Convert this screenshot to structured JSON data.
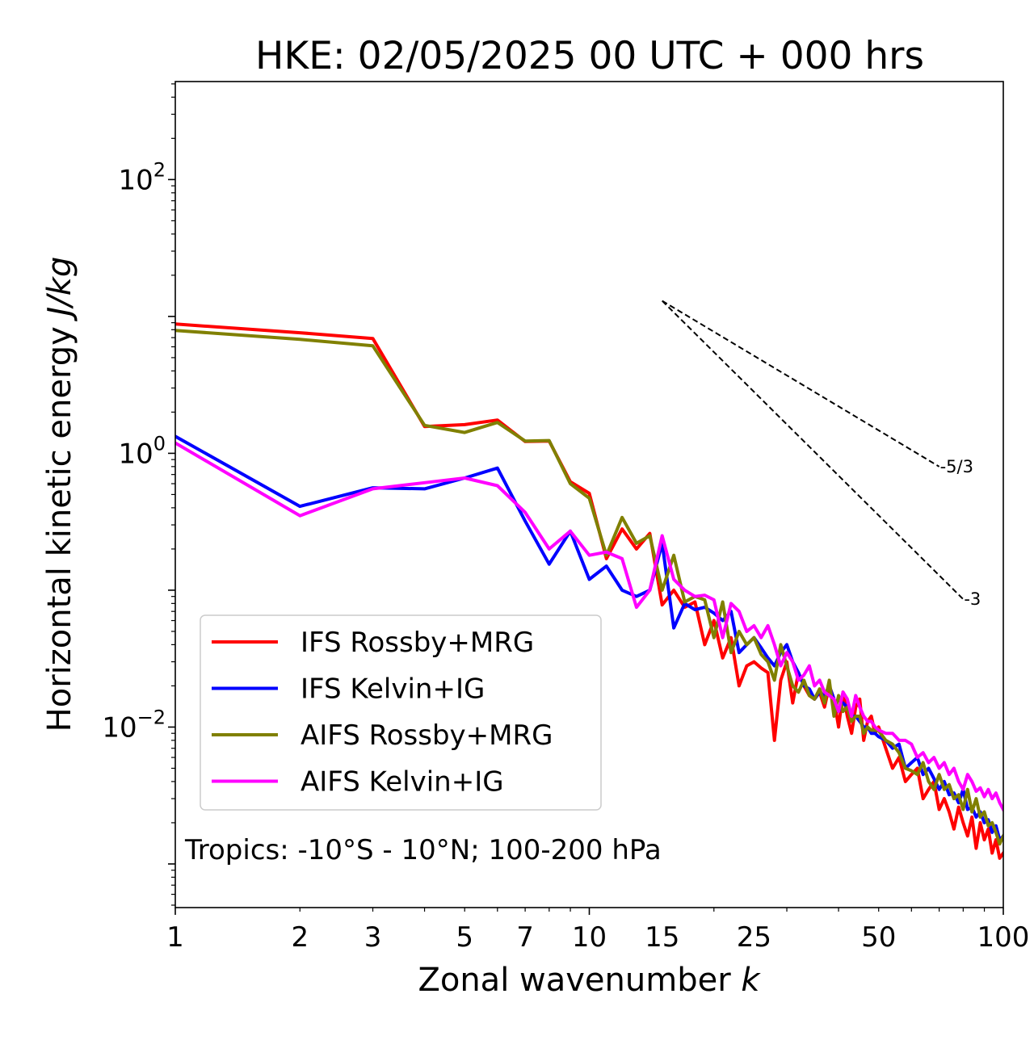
{
  "chart_data": {
    "type": "line",
    "title": "HKE: 02/05/2025 00 UTC + 000 hrs",
    "xlabel": "Zonal wavenumber",
    "xlabel_italic": "k",
    "ylabel": "Horizontal kinetic energy",
    "ylabel_italic": "J/kg",
    "xscale": "log",
    "yscale": "log",
    "xlim": [
      1,
      100
    ],
    "ylim": [
      0.00048,
      520
    ],
    "xticks": [
      1,
      2,
      3,
      5,
      7,
      10,
      15,
      25,
      50,
      100
    ],
    "xtick_labels": [
      "1",
      "2",
      "3",
      "5",
      "7",
      "10",
      "15",
      "25",
      "50",
      "100"
    ],
    "yticks": [
      0.01,
      1,
      100
    ],
    "ytick_labels": [
      "10",
      "10",
      "10"
    ],
    "ytick_exponents": [
      "−2",
      "0",
      "2"
    ],
    "annotation": "Tropics: -10°S - 10°N; 100-200 hPa",
    "legend": {
      "position": "lower-left"
    },
    "reference_lines": [
      {
        "label": "-5/3",
        "slope": -1.6667,
        "x": [
          15,
          70
        ],
        "y": [
          13.0,
          0.8
        ],
        "style": "dashed",
        "color": "#000000"
      },
      {
        "label": "-3",
        "slope": -3,
        "x": [
          15,
          80
        ],
        "y": [
          13.0,
          0.086
        ],
        "style": "dashed",
        "color": "#000000"
      }
    ],
    "series": [
      {
        "name": "IFS Rossby+MRG",
        "color": "#ff0000",
        "x": [
          1,
          2,
          3,
          4,
          5,
          6,
          7,
          8,
          9,
          10,
          11,
          12,
          13,
          14,
          15,
          16,
          17,
          18,
          19,
          20,
          21,
          22,
          23,
          24,
          25,
          26,
          27,
          28,
          29,
          30,
          31,
          32,
          33,
          34,
          35,
          36,
          37,
          38,
          39,
          40,
          41,
          42,
          43,
          44,
          45,
          46,
          47,
          48,
          49,
          50,
          52,
          54,
          56,
          58,
          60,
          62,
          64,
          66,
          68,
          70,
          72,
          74,
          76,
          78,
          80,
          82,
          84,
          86,
          88,
          90,
          92,
          94,
          96,
          98,
          100
        ],
        "y": [
          8.8,
          7.6,
          6.9,
          1.57,
          1.62,
          1.75,
          1.22,
          1.23,
          0.62,
          0.51,
          0.17,
          0.28,
          0.2,
          0.26,
          0.078,
          0.1,
          0.075,
          0.082,
          0.04,
          0.06,
          0.032,
          0.045,
          0.02,
          0.028,
          0.03,
          0.027,
          0.025,
          0.008,
          0.022,
          0.03,
          0.015,
          0.025,
          0.02,
          0.017,
          0.016,
          0.018,
          0.014,
          0.02,
          0.016,
          0.01,
          0.018,
          0.012,
          0.009,
          0.014,
          0.016,
          0.008,
          0.011,
          0.012,
          0.009,
          0.01,
          0.007,
          0.005,
          0.006,
          0.004,
          0.0045,
          0.005,
          0.003,
          0.0035,
          0.004,
          0.0025,
          0.003,
          0.0024,
          0.0018,
          0.0026,
          0.002,
          0.0016,
          0.0022,
          0.0013,
          0.002,
          0.0015,
          0.0018,
          0.0012,
          0.0015,
          0.0011,
          0.0012
        ]
      },
      {
        "name": "IFS Kelvin+IG",
        "color": "#0000ff",
        "x": [
          1,
          2,
          3,
          4,
          5,
          6,
          7,
          8,
          9,
          10,
          11,
          12,
          13,
          14,
          15,
          16,
          17,
          18,
          19,
          20,
          21,
          22,
          23,
          24,
          25,
          26,
          27,
          28,
          29,
          30,
          31,
          32,
          33,
          34,
          35,
          36,
          37,
          38,
          39,
          40,
          41,
          42,
          43,
          44,
          45,
          46,
          47,
          48,
          49,
          50,
          52,
          54,
          56,
          58,
          60,
          62,
          64,
          66,
          68,
          70,
          72,
          74,
          76,
          78,
          80,
          82,
          84,
          86,
          88,
          90,
          92,
          94,
          96,
          98,
          100
        ],
        "y": [
          1.33,
          0.41,
          0.56,
          0.55,
          0.66,
          0.78,
          0.32,
          0.155,
          0.27,
          0.12,
          0.15,
          0.1,
          0.09,
          0.1,
          0.22,
          0.053,
          0.08,
          0.072,
          0.075,
          0.068,
          0.06,
          0.07,
          0.035,
          0.04,
          0.045,
          0.038,
          0.032,
          0.028,
          0.035,
          0.04,
          0.03,
          0.025,
          0.02,
          0.019,
          0.016,
          0.018,
          0.017,
          0.02,
          0.016,
          0.013,
          0.015,
          0.014,
          0.012,
          0.012,
          0.011,
          0.01,
          0.01,
          0.009,
          0.009,
          0.0085,
          0.008,
          0.007,
          0.0075,
          0.005,
          0.0055,
          0.006,
          0.0045,
          0.005,
          0.0042,
          0.0035,
          0.004,
          0.0032,
          0.0033,
          0.0028,
          0.0035,
          0.0025,
          0.0026,
          0.0022,
          0.0024,
          0.002,
          0.0021,
          0.0017,
          0.0019,
          0.0015,
          0.0016
        ]
      },
      {
        "name": "AIFS Rossby+MRG",
        "color": "#808000",
        "x": [
          1,
          2,
          3,
          4,
          5,
          6,
          7,
          8,
          9,
          10,
          11,
          12,
          13,
          14,
          15,
          16,
          17,
          18,
          19,
          20,
          21,
          22,
          23,
          24,
          25,
          26,
          27,
          28,
          29,
          30,
          31,
          32,
          33,
          34,
          35,
          36,
          37,
          38,
          39,
          40,
          41,
          42,
          43,
          44,
          45,
          46,
          47,
          48,
          49,
          50,
          52,
          54,
          56,
          58,
          60,
          62,
          64,
          66,
          68,
          70,
          72,
          74,
          76,
          78,
          80,
          82,
          84,
          86,
          88,
          90,
          92,
          94,
          96,
          98,
          100
        ],
        "y": [
          7.9,
          6.8,
          6.1,
          1.6,
          1.42,
          1.68,
          1.23,
          1.24,
          0.6,
          0.47,
          0.18,
          0.34,
          0.22,
          0.25,
          0.1,
          0.18,
          0.082,
          0.09,
          0.085,
          0.045,
          0.082,
          0.035,
          0.05,
          0.04,
          0.045,
          0.034,
          0.03,
          0.022,
          0.04,
          0.028,
          0.02,
          0.018,
          0.022,
          0.017,
          0.016,
          0.019,
          0.015,
          0.022,
          0.012,
          0.017,
          0.013,
          0.014,
          0.011,
          0.012,
          0.012,
          0.009,
          0.01,
          0.0095,
          0.0095,
          0.0094,
          0.008,
          0.0075,
          0.0065,
          0.005,
          0.0048,
          0.0045,
          0.0055,
          0.004,
          0.0035,
          0.0045,
          0.0035,
          0.0038,
          0.003,
          0.0032,
          0.0025,
          0.0035,
          0.0024,
          0.003,
          0.0022,
          0.0024,
          0.0019,
          0.002,
          0.0017,
          0.0014,
          0.0016
        ]
      },
      {
        "name": "AIFS Kelvin+IG",
        "color": "#ff00ff",
        "x": [
          1,
          2,
          3,
          4,
          5,
          6,
          7,
          8,
          9,
          10,
          11,
          12,
          13,
          14,
          15,
          16,
          17,
          18,
          19,
          20,
          21,
          22,
          23,
          24,
          25,
          26,
          27,
          28,
          29,
          30,
          31,
          32,
          33,
          34,
          35,
          36,
          37,
          38,
          39,
          40,
          41,
          42,
          43,
          44,
          45,
          46,
          47,
          48,
          49,
          50,
          52,
          54,
          56,
          58,
          60,
          62,
          64,
          66,
          68,
          70,
          72,
          74,
          76,
          78,
          80,
          82,
          84,
          86,
          88,
          90,
          92,
          94,
          96,
          98,
          100
        ],
        "y": [
          1.19,
          0.35,
          0.55,
          0.61,
          0.66,
          0.58,
          0.37,
          0.2,
          0.27,
          0.18,
          0.19,
          0.17,
          0.075,
          0.1,
          0.25,
          0.12,
          0.1,
          0.09,
          0.092,
          0.085,
          0.045,
          0.08,
          0.07,
          0.05,
          0.055,
          0.045,
          0.055,
          0.04,
          0.028,
          0.035,
          0.03,
          0.022,
          0.024,
          0.028,
          0.02,
          0.022,
          0.018,
          0.017,
          0.016,
          0.013,
          0.018,
          0.016,
          0.012,
          0.017,
          0.014,
          0.012,
          0.011,
          0.011,
          0.01,
          0.0095,
          0.009,
          0.009,
          0.008,
          0.008,
          0.0075,
          0.006,
          0.0065,
          0.0055,
          0.006,
          0.005,
          0.0055,
          0.0045,
          0.005,
          0.004,
          0.0035,
          0.0045,
          0.004,
          0.0034,
          0.0036,
          0.0031,
          0.0035,
          0.003,
          0.0033,
          0.0028,
          0.0025
        ]
      }
    ]
  }
}
